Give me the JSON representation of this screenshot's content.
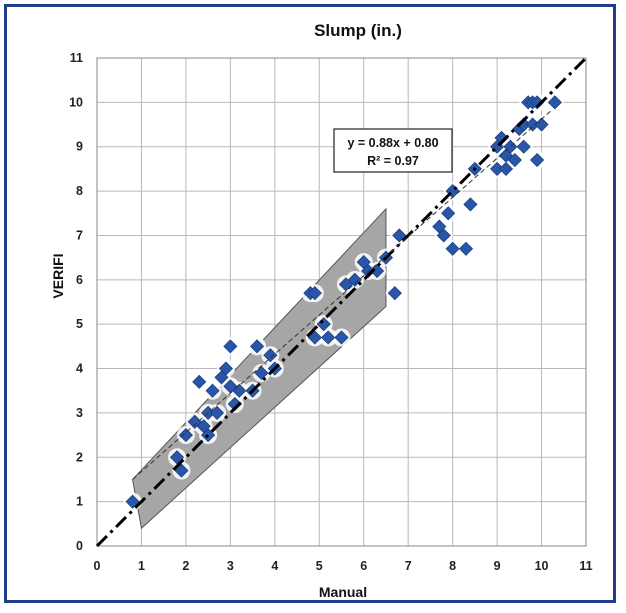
{
  "chart_data": {
    "type": "scatter",
    "title": "Slump (in.)",
    "xlabel": "Manual",
    "ylabel": "VERIFI",
    "xlim": [
      0,
      11
    ],
    "ylim": [
      0,
      11
    ],
    "xticks": [
      "0",
      "1",
      "2",
      "3",
      "4",
      "5",
      "6",
      "7",
      "8",
      "9",
      "10",
      "11"
    ],
    "yticks": [
      "0",
      "1",
      "2",
      "3",
      "4",
      "5",
      "6",
      "7",
      "8",
      "9",
      "10",
      "11"
    ],
    "grid": true,
    "annotation": {
      "equation": "y = 0.88x + 0.80",
      "r_squared": "R² = 0.97"
    },
    "colors": {
      "points": "#2a56a8",
      "band": "#a6a6a6",
      "frame": "#1f3e8a"
    },
    "points": [
      {
        "x": 0.8,
        "y": 1.0
      },
      {
        "x": 1.8,
        "y": 2.0
      },
      {
        "x": 1.9,
        "y": 1.7
      },
      {
        "x": 2.0,
        "y": 2.5
      },
      {
        "x": 2.2,
        "y": 2.8
      },
      {
        "x": 2.3,
        "y": 3.7
      },
      {
        "x": 2.4,
        "y": 2.7
      },
      {
        "x": 2.5,
        "y": 3.0
      },
      {
        "x": 2.5,
        "y": 2.5
      },
      {
        "x": 2.6,
        "y": 3.5
      },
      {
        "x": 2.7,
        "y": 3.0
      },
      {
        "x": 2.8,
        "y": 3.8
      },
      {
        "x": 2.9,
        "y": 4.0
      },
      {
        "x": 3.0,
        "y": 4.5
      },
      {
        "x": 3.0,
        "y": 3.6
      },
      {
        "x": 3.1,
        "y": 3.2
      },
      {
        "x": 3.2,
        "y": 3.5
      },
      {
        "x": 3.5,
        "y": 3.5
      },
      {
        "x": 3.6,
        "y": 4.5
      },
      {
        "x": 3.7,
        "y": 3.9
      },
      {
        "x": 3.9,
        "y": 4.3
      },
      {
        "x": 4.0,
        "y": 4.0
      },
      {
        "x": 4.8,
        "y": 5.7
      },
      {
        "x": 4.9,
        "y": 5.7
      },
      {
        "x": 4.9,
        "y": 4.7
      },
      {
        "x": 5.1,
        "y": 5.0
      },
      {
        "x": 5.2,
        "y": 4.7
      },
      {
        "x": 5.5,
        "y": 4.7
      },
      {
        "x": 5.6,
        "y": 5.9
      },
      {
        "x": 5.8,
        "y": 6.0
      },
      {
        "x": 6.0,
        "y": 6.4
      },
      {
        "x": 6.1,
        "y": 6.2
      },
      {
        "x": 6.3,
        "y": 6.2
      },
      {
        "x": 6.5,
        "y": 6.5
      },
      {
        "x": 6.7,
        "y": 5.7
      },
      {
        "x": 6.8,
        "y": 7.0
      },
      {
        "x": 7.7,
        "y": 7.2
      },
      {
        "x": 7.8,
        "y": 7.0
      },
      {
        "x": 7.9,
        "y": 7.5
      },
      {
        "x": 8.0,
        "y": 6.7
      },
      {
        "x": 8.0,
        "y": 8.0
      },
      {
        "x": 8.3,
        "y": 6.7
      },
      {
        "x": 8.4,
        "y": 7.7
      },
      {
        "x": 8.5,
        "y": 8.5
      },
      {
        "x": 9.0,
        "y": 8.5
      },
      {
        "x": 9.0,
        "y": 9.0
      },
      {
        "x": 9.1,
        "y": 9.2
      },
      {
        "x": 9.2,
        "y": 8.8
      },
      {
        "x": 9.2,
        "y": 8.5
      },
      {
        "x": 9.3,
        "y": 9.0
      },
      {
        "x": 9.4,
        "y": 8.7
      },
      {
        "x": 9.5,
        "y": 9.4
      },
      {
        "x": 9.6,
        "y": 9.0
      },
      {
        "x": 9.6,
        "y": 9.5
      },
      {
        "x": 9.7,
        "y": 10.0
      },
      {
        "x": 9.8,
        "y": 9.5
      },
      {
        "x": 9.8,
        "y": 10.0
      },
      {
        "x": 9.9,
        "y": 10.0
      },
      {
        "x": 9.9,
        "y": 8.7
      },
      {
        "x": 10.0,
        "y": 9.5
      },
      {
        "x": 10.3,
        "y": 10.0
      }
    ],
    "band_upper": [
      [
        0.8,
        1.5
      ],
      [
        6.5,
        7.6
      ]
    ],
    "band_lower": [
      [
        1.0,
        0.4
      ],
      [
        6.5,
        5.4
      ]
    ],
    "equality_line": [
      [
        0,
        0
      ],
      [
        11,
        11
      ]
    ],
    "trendline": [
      [
        0.8,
        1.5
      ],
      [
        10.2,
        9.8
      ]
    ]
  }
}
